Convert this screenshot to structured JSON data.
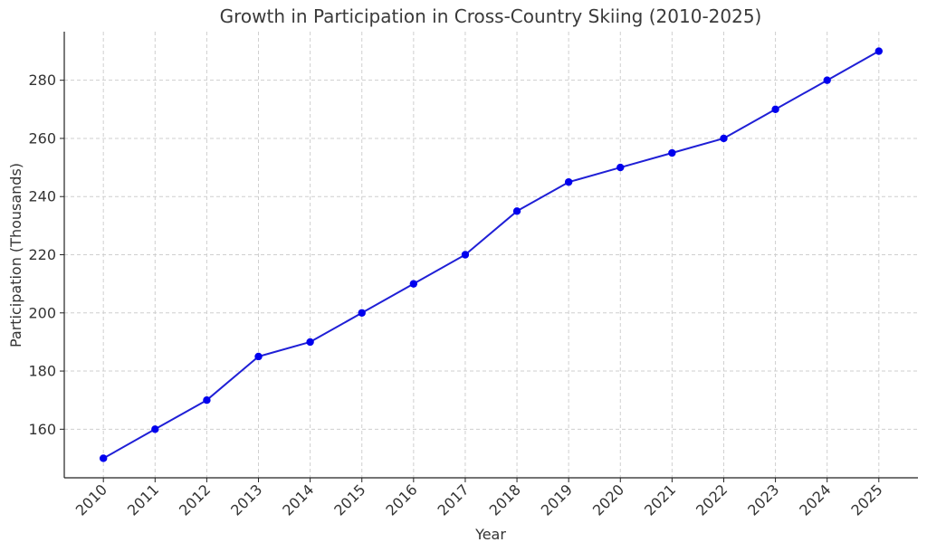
{
  "chart_data": {
    "type": "line",
    "title": "Growth in Participation in Cross-Country Skiing (2010-2025)",
    "xlabel": "Year",
    "ylabel": "Participation (Thousands)",
    "x": [
      "2010",
      "2011",
      "2012",
      "2013",
      "2014",
      "2015",
      "2016",
      "2017",
      "2018",
      "2019",
      "2020",
      "2021",
      "2022",
      "2023",
      "2024",
      "2025"
    ],
    "series": [
      {
        "values": [
          150,
          160,
          170,
          185,
          190,
          200,
          210,
          220,
          235,
          245,
          250,
          255,
          260,
          270,
          280,
          290
        ],
        "color": "#1f1fd6",
        "marker_color": "#0000ee"
      }
    ],
    "y_ticks": [
      160,
      180,
      200,
      220,
      240,
      260,
      280
    ],
    "ylim": [
      143.3,
      296.7
    ],
    "grid": true,
    "legend": "none"
  }
}
